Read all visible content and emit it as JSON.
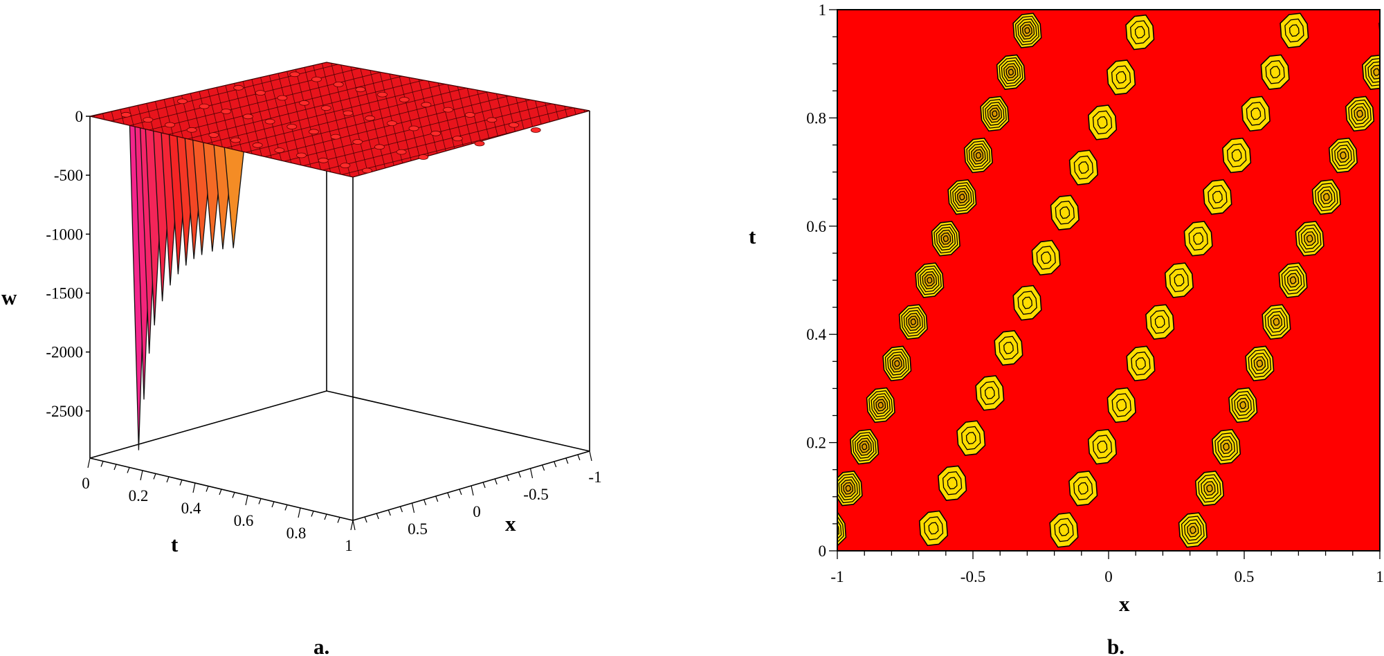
{
  "chart_data": [
    {
      "type": "surface3d",
      "panel_label": "a.",
      "xlabel": "t",
      "ylabel": "x",
      "zlabel": "w",
      "t_range": [
        0,
        1
      ],
      "x_range": [
        1,
        -1
      ],
      "z_range": [
        -2900,
        0
      ],
      "t_ticks": [
        "0",
        "0.2",
        "0.4",
        "0.6",
        "0.8",
        "1"
      ],
      "x_ticks": [
        "0.5",
        "0",
        "-0.5",
        "-1"
      ],
      "z_ticks": [
        "0",
        "-500",
        "-1000",
        "-1500",
        "-2000",
        "-2500"
      ],
      "spikes": [
        {
          "t": 0.18,
          "w": -2740
        },
        {
          "t": 0.2,
          "w": -2300
        },
        {
          "t": 0.22,
          "w": -1900
        },
        {
          "t": 0.24,
          "w": -1650
        },
        {
          "t": 0.27,
          "w": -1430
        },
        {
          "t": 0.3,
          "w": -1280
        },
        {
          "t": 0.33,
          "w": -1170
        },
        {
          "t": 0.36,
          "w": -1080
        },
        {
          "t": 0.39,
          "w": -1010
        },
        {
          "t": 0.42,
          "w": -960
        },
        {
          "t": 0.46,
          "w": -910
        },
        {
          "t": 0.5,
          "w": -870
        },
        {
          "t": 0.54,
          "w": -840
        }
      ],
      "colors": {
        "surface": "#e8141c",
        "mesh": "#3a0000"
      }
    },
    {
      "type": "contour",
      "panel_label": "b.",
      "xlabel": "x",
      "ylabel": "t",
      "xlim": [
        -1,
        1
      ],
      "ylim": [
        0,
        1
      ],
      "x_ticks": [
        "-1",
        "-0.5",
        "0",
        "0.5",
        "1"
      ],
      "y_ticks": [
        "0",
        "0.2",
        "0.4",
        "0.6",
        "0.8",
        "1"
      ],
      "x_tick_values": [
        -1,
        -0.5,
        0,
        0.5,
        1
      ],
      "y_tick_values": [
        0,
        0.2,
        0.4,
        0.6,
        0.8,
        1
      ],
      "bands": [
        {
          "x0": -1.05,
          "t0": 0.0,
          "x1": -0.27,
          "t1": 1.0,
          "count": 13,
          "rings": 6
        },
        {
          "x0": -0.68,
          "t0": 0.0,
          "x1": 0.15,
          "t1": 1.0,
          "count": 12,
          "rings": 3
        },
        {
          "x0": -0.2,
          "t0": 0.0,
          "x1": 0.72,
          "t1": 1.0,
          "count": 13,
          "rings": 3
        },
        {
          "x0": 0.28,
          "t0": 0.0,
          "x1": 1.08,
          "t1": 1.0,
          "count": 13,
          "rings": 5
        }
      ],
      "colors": {
        "background": "#ff0000",
        "blob": "#ffdd00",
        "line": "#000000"
      }
    }
  ]
}
